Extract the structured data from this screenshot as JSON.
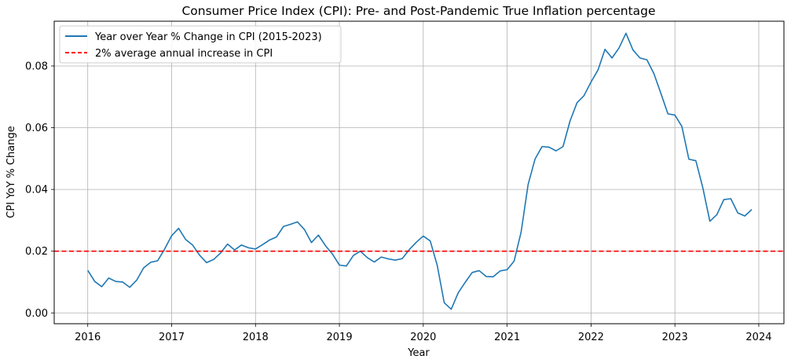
{
  "chart_data": {
    "type": "line",
    "title": "Consumer Price Index (CPI): Pre- and Post-Pandemic True Inflation percentage",
    "xlabel": "Year",
    "ylabel": "CPI YoY % Change",
    "xlim": [
      2015.6,
      2024.3
    ],
    "ylim": [
      -0.0035,
      0.0945
    ],
    "xticks": [
      "2016",
      "2017",
      "2018",
      "2019",
      "2020",
      "2021",
      "2022",
      "2023",
      "2024"
    ],
    "yticks": [
      "0.00",
      "0.02",
      "0.04",
      "0.06",
      "0.08"
    ],
    "grid": true,
    "legend_position": "upper-left",
    "series": [
      {
        "name": "Year over Year % Change in CPI (2015-2023)",
        "color": "#1f77b4",
        "x_start": "2016-01",
        "x_step": "1 month",
        "values": [
          0.0138,
          0.0102,
          0.0085,
          0.0113,
          0.0102,
          0.01,
          0.0083,
          0.0106,
          0.0146,
          0.0164,
          0.0169,
          0.0207,
          0.025,
          0.0274,
          0.0238,
          0.022,
          0.0187,
          0.0163,
          0.0173,
          0.0194,
          0.0223,
          0.0204,
          0.022,
          0.0211,
          0.0207,
          0.0221,
          0.0236,
          0.0246,
          0.028,
          0.0287,
          0.0295,
          0.027,
          0.0228,
          0.0252,
          0.0218,
          0.0191,
          0.0155,
          0.0152,
          0.0186,
          0.02,
          0.0179,
          0.0165,
          0.0181,
          0.0175,
          0.0171,
          0.0176,
          0.0205,
          0.0229,
          0.0249,
          0.0233,
          0.0154,
          0.0033,
          0.0012,
          0.0065,
          0.0099,
          0.0131,
          0.0137,
          0.0118,
          0.0117,
          0.0136,
          0.014,
          0.0168,
          0.0262,
          0.0416,
          0.0499,
          0.0539,
          0.0537,
          0.0525,
          0.0539,
          0.0622,
          0.0681,
          0.0704,
          0.0748,
          0.0787,
          0.0854,
          0.0826,
          0.0858,
          0.0906,
          0.0852,
          0.0826,
          0.082,
          0.0775,
          0.0711,
          0.0645,
          0.0641,
          0.0604,
          0.0498,
          0.0493,
          0.0405,
          0.0297,
          0.0318,
          0.0367,
          0.037,
          0.0324,
          0.0314,
          0.0335
        ]
      },
      {
        "name": "2% average annual increase in CPI",
        "color": "#ff0000",
        "style": "dashed",
        "y_constant": 0.02
      }
    ]
  }
}
